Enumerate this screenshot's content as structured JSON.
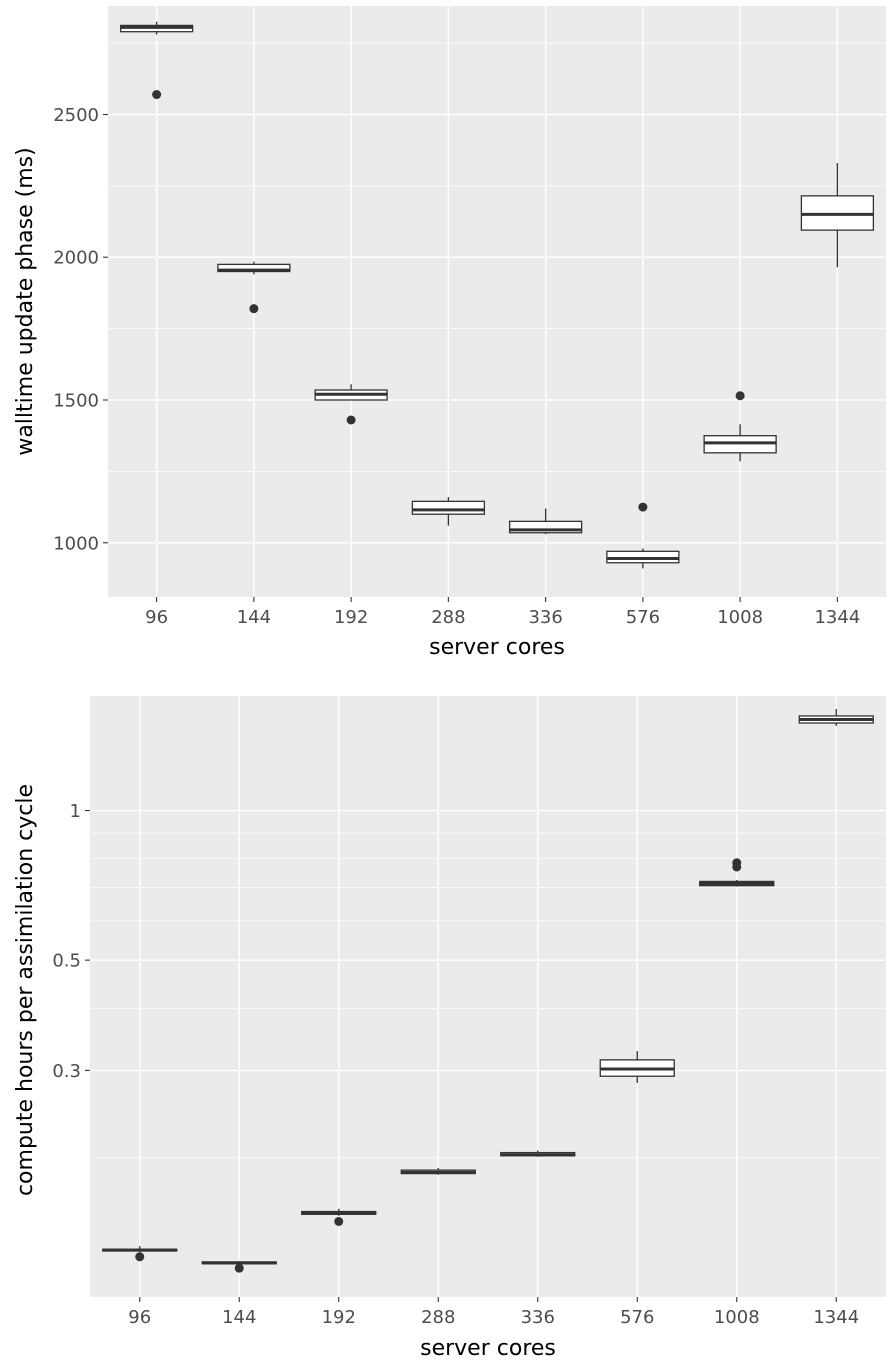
{
  "chart_data": [
    {
      "type": "box",
      "xlabel": "server cores",
      "ylabel": "walltime update phase (ms)",
      "categories": [
        "96",
        "144",
        "192",
        "288",
        "336",
        "576",
        "1008",
        "1344"
      ],
      "yscale": "linear",
      "ylim": [
        810,
        2880
      ],
      "yticks": [
        1000,
        1500,
        2000,
        2500
      ],
      "ytick_labels": [
        "1000",
        "1500",
        "2000",
        "2500"
      ],
      "grid": true,
      "boxes": [
        {
          "category": "96",
          "whisker_low": 2780,
          "q1": 2790,
          "median": 2805,
          "q3": 2812,
          "whisker_high": 2825,
          "outliers": [
            2570
          ]
        },
        {
          "category": "144",
          "whisker_low": 1940,
          "q1": 1950,
          "median": 1955,
          "q3": 1975,
          "whisker_high": 1985,
          "outliers": [
            1820
          ]
        },
        {
          "category": "192",
          "whisker_low": 1500,
          "q1": 1500,
          "median": 1520,
          "q3": 1535,
          "whisker_high": 1555,
          "outliers": [
            1430
          ]
        },
        {
          "category": "288",
          "whisker_low": 1060,
          "q1": 1100,
          "median": 1115,
          "q3": 1145,
          "whisker_high": 1160,
          "outliers": []
        },
        {
          "category": "336",
          "whisker_low": 1030,
          "q1": 1035,
          "median": 1045,
          "q3": 1075,
          "whisker_high": 1120,
          "outliers": []
        },
        {
          "category": "576",
          "whisker_low": 910,
          "q1": 930,
          "median": 945,
          "q3": 970,
          "whisker_high": 980,
          "outliers": [
            1125
          ]
        },
        {
          "category": "1008",
          "whisker_low": 1285,
          "q1": 1315,
          "median": 1350,
          "q3": 1375,
          "whisker_high": 1415,
          "outliers": [
            1515
          ]
        },
        {
          "category": "1344",
          "whisker_low": 1965,
          "q1": 2095,
          "median": 2150,
          "q3": 2215,
          "whisker_high": 2330,
          "outliers": []
        }
      ]
    },
    {
      "type": "box",
      "xlabel": "server cores",
      "ylabel": "compute hours per assimilation cycle",
      "categories": [
        "96",
        "144",
        "192",
        "288",
        "336",
        "576",
        "1008",
        "1344"
      ],
      "yscale": "log",
      "ylim": [
        0.105,
        1.7
      ],
      "yticks": [
        0.3,
        0.5,
        1
      ],
      "ytick_labels": [
        "0.3",
        "0.5",
        "1"
      ],
      "grid": true,
      "boxes": [
        {
          "category": "96",
          "whisker_low": 0.129,
          "q1": 0.13,
          "median": 0.1305,
          "q3": 0.131,
          "whisker_high": 0.133,
          "outliers": [
            0.1265
          ]
        },
        {
          "category": "144",
          "whisker_low": 0.1225,
          "q1": 0.1225,
          "median": 0.123,
          "q3": 0.1235,
          "whisker_high": 0.124,
          "outliers": [
            0.12
          ]
        },
        {
          "category": "192",
          "whisker_low": 0.153,
          "q1": 0.154,
          "median": 0.155,
          "q3": 0.156,
          "whisker_high": 0.158,
          "outliers": [
            0.149
          ]
        },
        {
          "category": "288",
          "whisker_low": 0.185,
          "q1": 0.186,
          "median": 0.187,
          "q3": 0.189,
          "whisker_high": 0.191,
          "outliers": []
        },
        {
          "category": "336",
          "whisker_low": 0.201,
          "q1": 0.202,
          "median": 0.203,
          "q3": 0.205,
          "whisker_high": 0.207,
          "outliers": []
        },
        {
          "category": "576",
          "whisker_low": 0.283,
          "q1": 0.292,
          "median": 0.302,
          "q3": 0.315,
          "whisker_high": 0.328,
          "outliers": []
        },
        {
          "category": "1008",
          "whisker_low": 0.703,
          "q1": 0.706,
          "median": 0.713,
          "q3": 0.72,
          "whisker_high": 0.725,
          "outliers": [
            0.77,
            0.785
          ]
        },
        {
          "category": "1344",
          "whisker_low": 1.48,
          "q1": 1.5,
          "median": 1.525,
          "q3": 1.55,
          "whisker_high": 1.6,
          "outliers": []
        }
      ]
    }
  ]
}
